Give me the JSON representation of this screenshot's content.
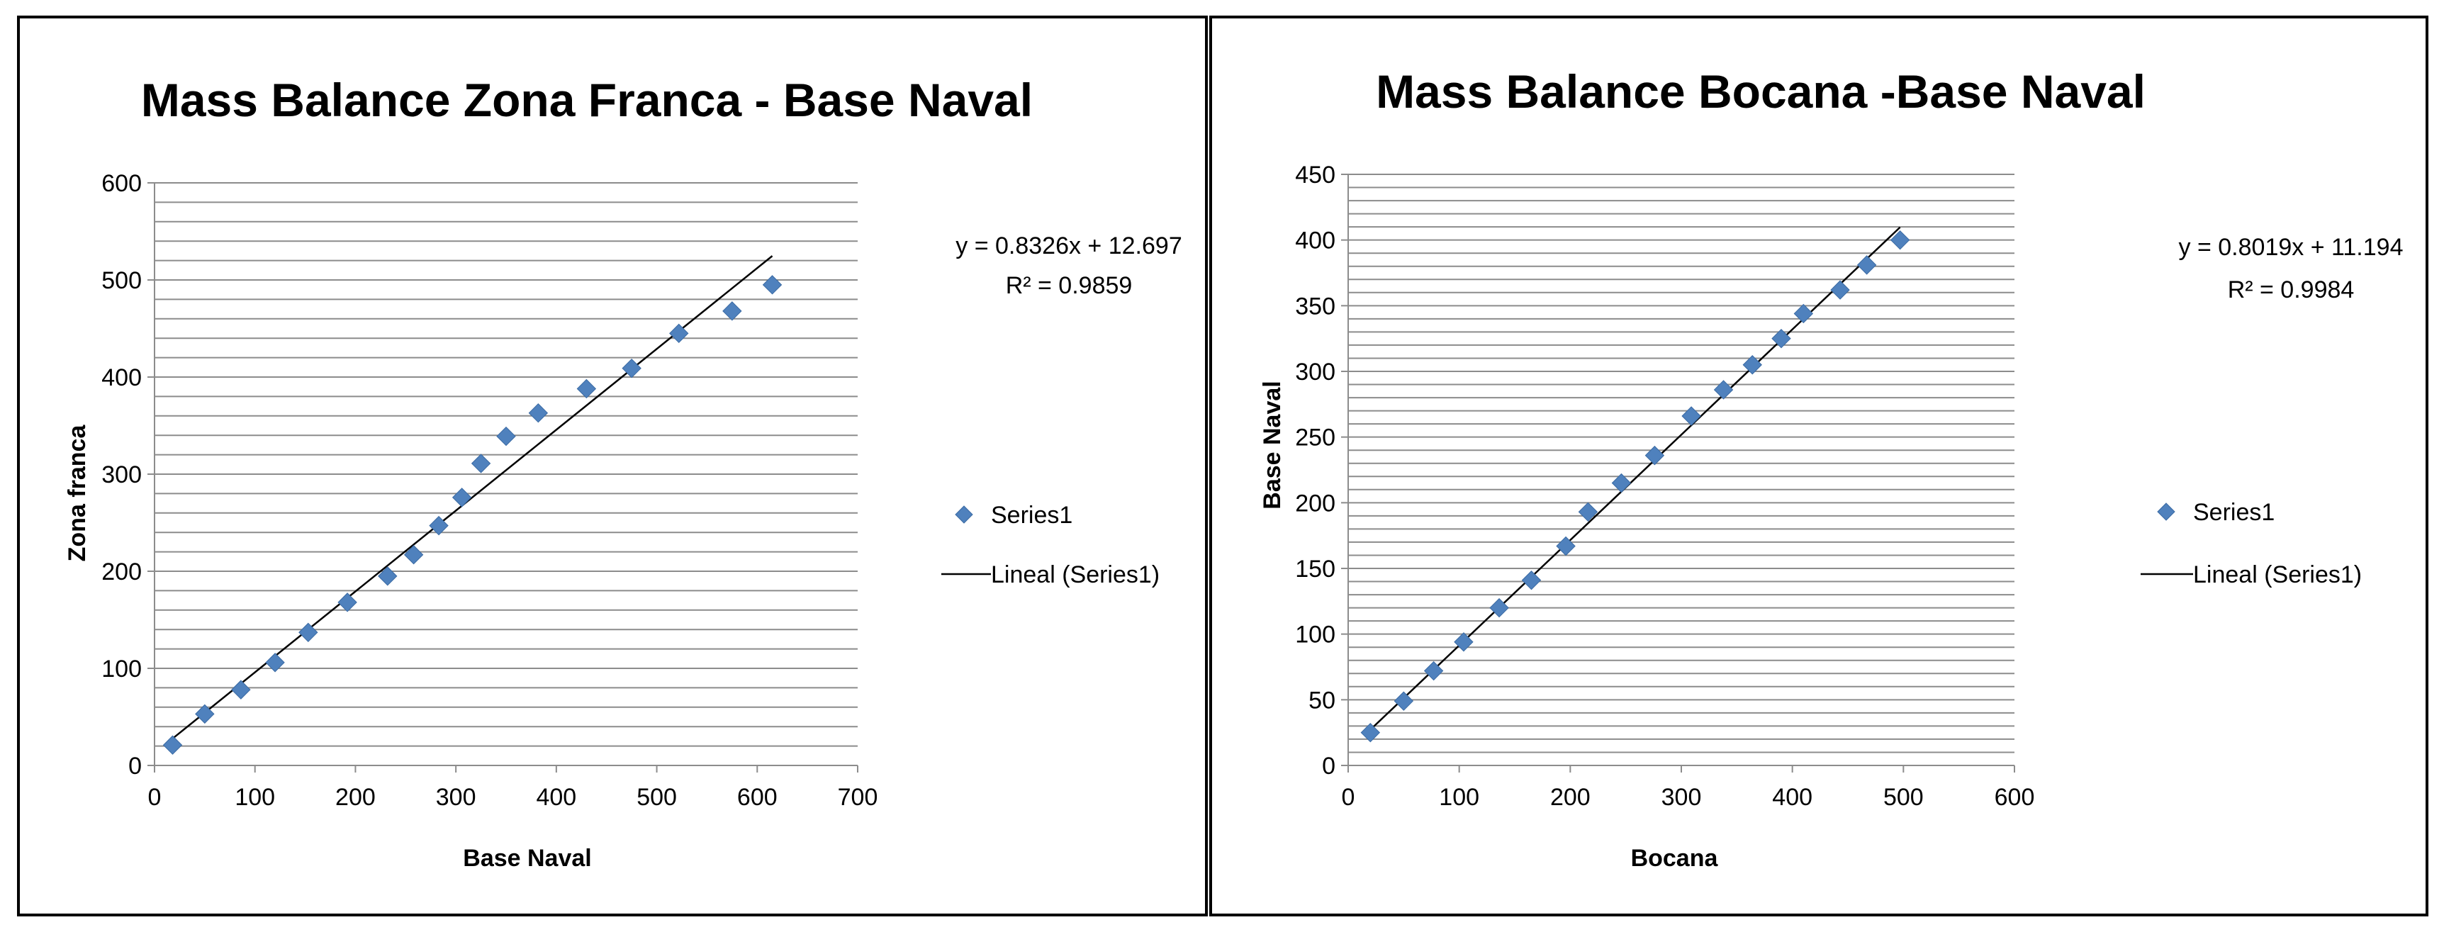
{
  "colors": {
    "marker": "#4f81bd",
    "trendline": "#000000",
    "gridline": "#8c8c8c"
  },
  "chart_data": [
    {
      "type": "scatter",
      "title": "Mass Balance Zona Franca - Base Naval",
      "xlabel": "Base Naval",
      "ylabel": "Zona franca",
      "xlim": [
        0,
        700
      ],
      "ylim": [
        0,
        600
      ],
      "xticks": [
        "0",
        "100",
        "200",
        "300",
        "400",
        "500",
        "600",
        "700"
      ],
      "yticks": [
        "0",
        "100",
        "200",
        "300",
        "400",
        "500",
        "600"
      ],
      "x_step": 100,
      "y_step": 100,
      "minor_y_step": 20,
      "series": [
        {
          "name": "Series1",
          "x": [
            18,
            50,
            86,
            120,
            153,
            192,
            232,
            258,
            283,
            306,
            325,
            350,
            382,
            430,
            475,
            522,
            575,
            615
          ],
          "y": [
            21,
            53,
            78,
            106,
            137,
            168,
            195,
            217,
            247,
            276,
            311,
            339,
            363,
            388,
            409,
            445,
            468,
            495
          ]
        }
      ],
      "trendline": {
        "name": "Lineal (Series1)",
        "slope": 0.8326,
        "intercept": 12.697,
        "x_range": [
          18,
          615
        ],
        "equation": "y = 0.8326x + 12.697",
        "r2_label": "R² = 0.9859"
      },
      "legend": {
        "position": "right",
        "entries": [
          "Series1",
          "Lineal (Series1)"
        ]
      }
    },
    {
      "type": "scatter",
      "title": "Mass Balance Bocana -Base Naval",
      "xlabel": "Bocana",
      "ylabel": "Base Naval",
      "xlim": [
        0,
        600
      ],
      "ylim": [
        0,
        450
      ],
      "xticks": [
        "0",
        "100",
        "200",
        "300",
        "400",
        "500",
        "600"
      ],
      "yticks": [
        "0",
        "50",
        "100",
        "150",
        "200",
        "250",
        "300",
        "350",
        "400",
        "450"
      ],
      "x_step": 100,
      "y_step": 50,
      "minor_y_step": 10,
      "series": [
        {
          "name": "Series1",
          "x": [
            20,
            50,
            77,
            104,
            136,
            165,
            196,
            216,
            246,
            276,
            309,
            338,
            364,
            390,
            410,
            443,
            467,
            497
          ],
          "y": [
            25,
            49,
            72,
            94,
            120,
            141,
            167,
            193,
            215,
            236,
            266,
            286,
            305,
            325,
            344,
            362,
            381,
            400
          ]
        }
      ],
      "trendline": {
        "name": "Lineal (Series1)",
        "slope": 0.8019,
        "intercept": 11.194,
        "x_range": [
          20,
          497
        ],
        "equation": "y = 0.8019x + 11.194",
        "r2_label": "R² = 0.9984"
      },
      "legend": {
        "position": "right",
        "entries": [
          "Series1",
          "Lineal (Series1)"
        ]
      }
    }
  ]
}
